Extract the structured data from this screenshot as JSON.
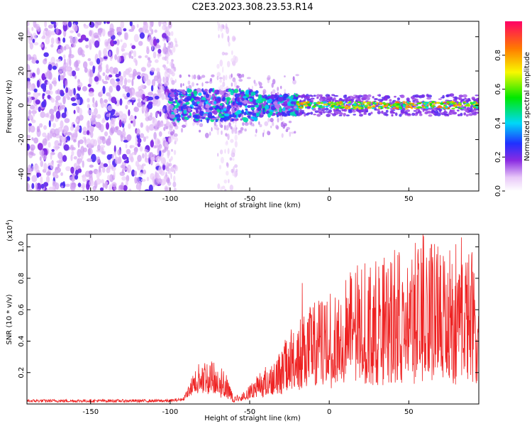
{
  "figure_title": "C2E3.2023.308.23.53.R14",
  "colors": {
    "snr_line": "#ee2222",
    "spectrum_low": "#e6d2f4",
    "spectrum_mid": "#8a2be2",
    "spectrum_peak": "#ff0000"
  },
  "chart_data": [
    {
      "type": "heatmap",
      "title": "C2E3.2023.308.23.53.R14",
      "xlabel": "Height of straight line (km)",
      "ylabel": "Frequency (Hz)",
      "xlim": [
        -190,
        94
      ],
      "ylim": [
        -50,
        49
      ],
      "xticks": [
        -150,
        -100,
        -50,
        0,
        50
      ],
      "yticks": [
        -40,
        -20,
        0,
        20,
        40
      ],
      "colorbar": {
        "label": "Normalized spectral amplitude",
        "range": [
          0.0,
          1.0
        ],
        "ticks": [
          "0.0",
          "0.2",
          "0.4",
          "0.6",
          "0.8"
        ],
        "tick_values": [
          0.0,
          0.2,
          0.4,
          0.6,
          0.8
        ]
      },
      "features": [
        {
          "name": "broadband noise region",
          "x_range": [
            -190,
            -100
          ],
          "y_range": [
            -50,
            49
          ],
          "amplitude": 0.15
        },
        {
          "name": "sporadic column",
          "x_range": [
            -70,
            -58
          ],
          "y_range": [
            -50,
            49
          ],
          "amplitude": 0.1
        },
        {
          "name": "strong central band",
          "x_range": [
            -100,
            -20
          ],
          "y_range": [
            -8,
            8
          ],
          "amplitude": 0.35
        },
        {
          "name": "narrow line",
          "x_range": [
            -20,
            94
          ],
          "y_range": [
            -3,
            3
          ],
          "amplitude": 0.8
        }
      ]
    },
    {
      "type": "line",
      "xlabel": "Height of straight line (km)",
      "ylabel": "SNR (10 * v/v)",
      "scale_label": "(x10",
      "scale_exponent": "4",
      "scale_close": ")",
      "xlim": [
        -190,
        94
      ],
      "ylim": [
        0,
        1.08
      ],
      "xticks": [
        -150,
        -100,
        -50,
        0,
        50
      ],
      "yticks": [
        "0.2",
        "0.4",
        "0.6",
        "0.8",
        "1.0"
      ],
      "ytick_values": [
        0.2,
        0.4,
        0.6,
        0.8,
        1.0
      ],
      "series": [
        {
          "name": "SNR",
          "envelope_x": [
            -190,
            -160,
            -130,
            -100,
            -92,
            -88,
            -85,
            -80,
            -75,
            -70,
            -65,
            -60,
            -55,
            -50,
            -45,
            -40,
            -35,
            -30,
            -25,
            -20,
            -15,
            -10,
            -5,
            0,
            5,
            10,
            20,
            30,
            40,
            50,
            60,
            70,
            80,
            85,
            90,
            94
          ],
          "envelope_max": [
            0.03,
            0.03,
            0.03,
            0.03,
            0.04,
            0.12,
            0.22,
            0.28,
            0.29,
            0.26,
            0.2,
            0.05,
            0.07,
            0.12,
            0.2,
            0.25,
            0.28,
            0.35,
            0.48,
            0.55,
            0.58,
            0.65,
            0.68,
            0.72,
            0.7,
            0.85,
            0.9,
            0.92,
            0.95,
            1.0,
            1.08,
            1.0,
            1.06,
            0.95,
            1.0,
            0.6
          ],
          "envelope_min": [
            0.01,
            0.01,
            0.01,
            0.01,
            0.02,
            0.05,
            0.06,
            0.06,
            0.05,
            0.04,
            0.03,
            0.01,
            0.02,
            0.03,
            0.04,
            0.04,
            0.05,
            0.06,
            0.07,
            0.08,
            0.09,
            0.1,
            0.1,
            0.1,
            0.1,
            0.1,
            0.12,
            0.12,
            0.12,
            0.12,
            0.14,
            0.12,
            0.12,
            0.12,
            0.12,
            0.12
          ],
          "peak_markers": [
            {
              "x": -17,
              "y": 0.77
            },
            {
              "x": 41,
              "y": 0.98
            },
            {
              "x": 59,
              "y": 1.08
            },
            {
              "x": 83,
              "y": 1.06
            }
          ]
        }
      ]
    }
  ]
}
